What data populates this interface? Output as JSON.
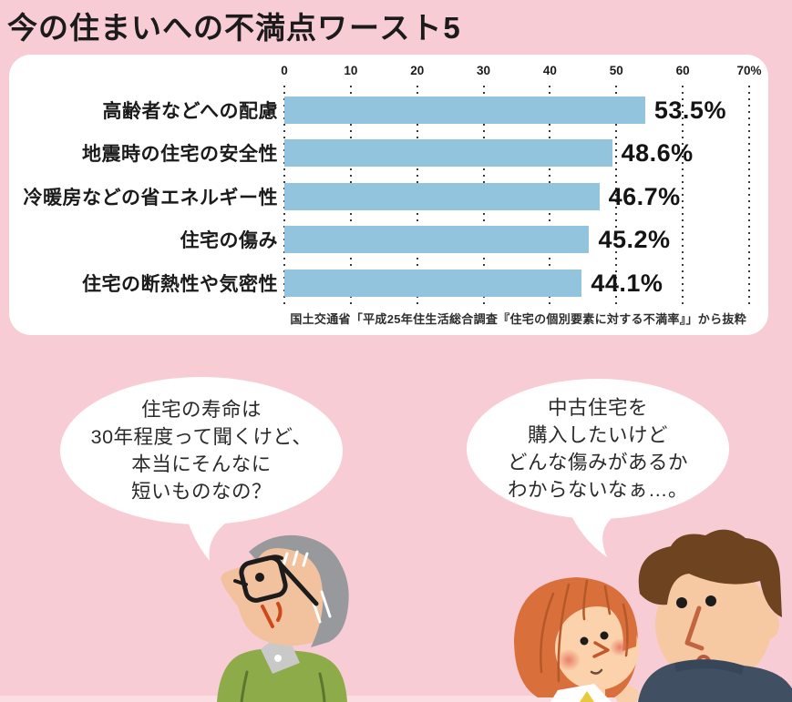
{
  "title": {
    "regular": "今の住まいへの不満点",
    "bold": "ワースト5"
  },
  "chart_data": {
    "type": "bar",
    "orientation": "horizontal",
    "title": "今の住まいへの不満点ワースト5",
    "categories": [
      "高齢者などへの配慮",
      "地震時の住宅の安全性",
      "冷暖房などの省エネルギー性",
      "住宅の傷み",
      "住宅の断熱性や気密性"
    ],
    "values": [
      53.5,
      48.6,
      46.7,
      45.2,
      44.1
    ],
    "value_labels": [
      "53.5%",
      "48.6%",
      "46.7%",
      "45.2%",
      "44.1%"
    ],
    "axis_ticks": [
      "0",
      "10",
      "20",
      "30",
      "40",
      "50",
      "60",
      "70%"
    ],
    "xlim": [
      0,
      70
    ],
    "grid": "dotted-vertical",
    "bar_color": "#93c4de",
    "source": "国土交通省「平成25年住生活総合調査『住宅の個別要素に対する不満率』」から抜粋"
  },
  "speech_bubbles": {
    "left": "住宅の寿命は\n30年程度って聞くけど、\n本当にそんなに\n短いものなの？",
    "right": "中古住宅を\n購入したいけど\nどんな傷みがあるか\nわからないなぁ…。"
  },
  "illustrations": {
    "left": "elderly-man-looking-up",
    "right": "young-couple-wondering"
  },
  "colors": {
    "background": "#f8ccd5",
    "panel": "#ffffff",
    "bar": "#93c4de",
    "text": "#1b1b1b"
  }
}
